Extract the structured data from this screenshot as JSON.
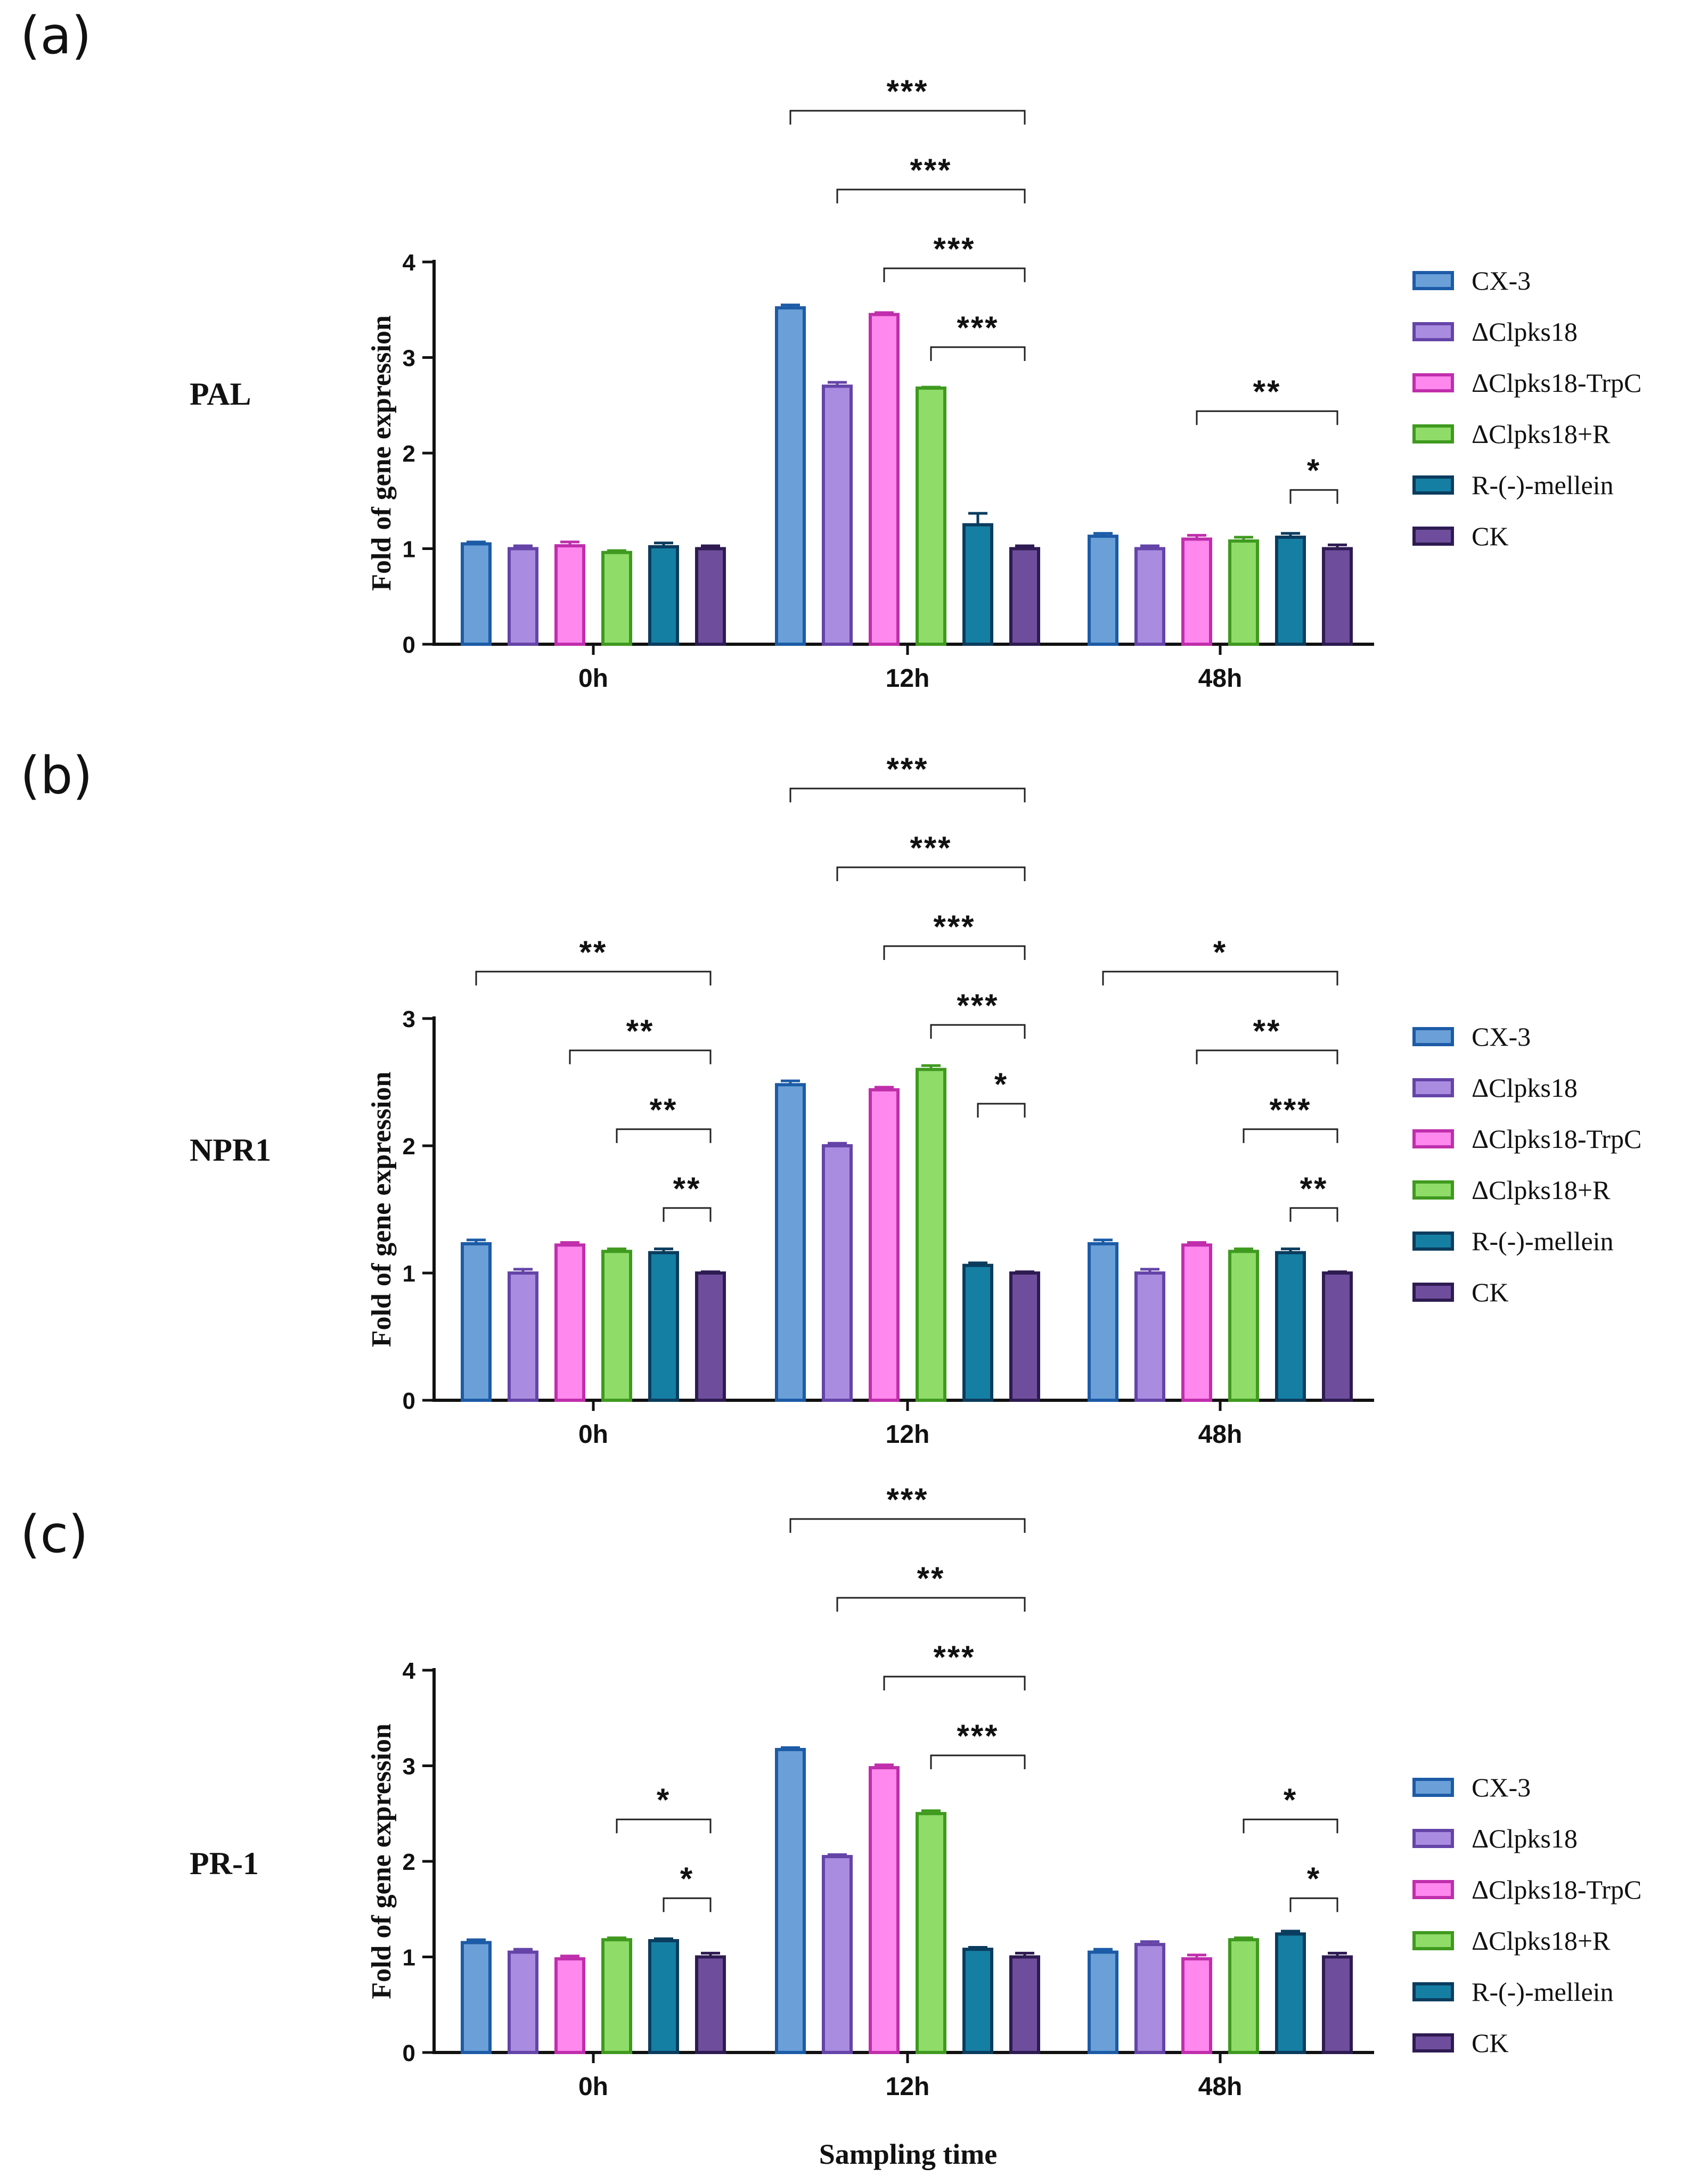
{
  "figure": {
    "x_title": "Sampling time",
    "series": [
      {
        "name": "CX-3",
        "fill": "#6a9fd8",
        "stroke": "#1c5ba6"
      },
      {
        "name": "ΔClpks18",
        "fill": "#a98be0",
        "stroke": "#6544a8"
      },
      {
        "name": "ΔClpks18-TrpC",
        "fill": "#ff88ee",
        "stroke": "#c02eac"
      },
      {
        "name": "ΔClpks18+R",
        "fill": "#8fdc69",
        "stroke": "#3f9a1f"
      },
      {
        "name": "R-(-)-mellein",
        "fill": "#157fa3",
        "stroke": "#0a3c5e"
      },
      {
        "name": "CK",
        "fill": "#6e4e9c",
        "stroke": "#2e1b52"
      }
    ]
  },
  "chart_data": [
    {
      "type": "bar",
      "panel": "(a)",
      "gene": "PAL",
      "ylabel": "Fold of gene expression",
      "categories": [
        "0h",
        "12h",
        "48h"
      ],
      "ylim": [
        0,
        4
      ],
      "yticks": [
        "0",
        "1",
        "2",
        "3",
        "4"
      ],
      "series": [
        {
          "name": "CX-3",
          "values": [
            1.05,
            3.52,
            1.13
          ],
          "errors": [
            0.02,
            0.03,
            0.03
          ]
        },
        {
          "name": "ΔClpks18",
          "values": [
            1.0,
            2.7,
            1.0
          ],
          "errors": [
            0.03,
            0.04,
            0.03
          ]
        },
        {
          "name": "ΔClpks18-TrpC",
          "values": [
            1.03,
            3.45,
            1.1
          ],
          "errors": [
            0.04,
            0.02,
            0.04
          ]
        },
        {
          "name": "ΔClpks18+R",
          "values": [
            0.96,
            2.68,
            1.08
          ],
          "errors": [
            0.02,
            0.01,
            0.04
          ]
        },
        {
          "name": "R-(-)-mellein",
          "values": [
            1.02,
            1.25,
            1.12
          ],
          "errors": [
            0.04,
            0.12,
            0.04
          ]
        },
        {
          "name": "CK",
          "values": [
            1.0,
            1.0,
            1.0
          ],
          "errors": [
            0.03,
            0.03,
            0.04
          ]
        }
      ],
      "significance": [
        {
          "category": "12h",
          "from": "CX-3",
          "to": "CK",
          "label": "***"
        },
        {
          "category": "12h",
          "from": "ΔClpks18",
          "to": "CK",
          "label": "***"
        },
        {
          "category": "12h",
          "from": "ΔClpks18-TrpC",
          "to": "CK",
          "label": "***"
        },
        {
          "category": "12h",
          "from": "ΔClpks18+R",
          "to": "CK",
          "label": "***"
        },
        {
          "category": "48h",
          "from": "ΔClpks18-TrpC",
          "to": "CK",
          "label": "**"
        },
        {
          "category": "48h",
          "from": "R-(-)-mellein",
          "to": "CK",
          "label": "*"
        }
      ]
    },
    {
      "type": "bar",
      "panel": "(b)",
      "gene": "NPR1",
      "ylabel": "Fold of gene expression",
      "categories": [
        "0h",
        "12h",
        "48h"
      ],
      "ylim": [
        0,
        3
      ],
      "yticks": [
        "0",
        "1",
        "2",
        "3"
      ],
      "series": [
        {
          "name": "CX-3",
          "values": [
            1.23,
            2.48,
            1.23
          ],
          "errors": [
            0.03,
            0.03,
            0.03
          ]
        },
        {
          "name": "ΔClpks18",
          "values": [
            1.0,
            2.0,
            1.0
          ],
          "errors": [
            0.03,
            0.02,
            0.03
          ]
        },
        {
          "name": "ΔClpks18-TrpC",
          "values": [
            1.22,
            2.44,
            1.22
          ],
          "errors": [
            0.02,
            0.02,
            0.02
          ]
        },
        {
          "name": "ΔClpks18+R",
          "values": [
            1.17,
            2.6,
            1.17
          ],
          "errors": [
            0.02,
            0.03,
            0.02
          ]
        },
        {
          "name": "R-(-)-mellein",
          "values": [
            1.16,
            1.06,
            1.16
          ],
          "errors": [
            0.03,
            0.02,
            0.03
          ]
        },
        {
          "name": "CK",
          "values": [
            1.0,
            1.0,
            1.0
          ],
          "errors": [
            0.01,
            0.01,
            0.01
          ]
        }
      ],
      "significance": [
        {
          "category": "0h",
          "from": "CX-3",
          "to": "CK",
          "label": "**"
        },
        {
          "category": "0h",
          "from": "ΔClpks18-TrpC",
          "to": "CK",
          "label": "**"
        },
        {
          "category": "0h",
          "from": "ΔClpks18+R",
          "to": "CK",
          "label": "**"
        },
        {
          "category": "0h",
          "from": "R-(-)-mellein",
          "to": "CK",
          "label": "**"
        },
        {
          "category": "12h",
          "from": "CX-3",
          "to": "CK",
          "label": "***"
        },
        {
          "category": "12h",
          "from": "ΔClpks18",
          "to": "CK",
          "label": "***"
        },
        {
          "category": "12h",
          "from": "ΔClpks18-TrpC",
          "to": "CK",
          "label": "***"
        },
        {
          "category": "12h",
          "from": "ΔClpks18+R",
          "to": "CK",
          "label": "***"
        },
        {
          "category": "12h",
          "from": "R-(-)-mellein",
          "to": "CK",
          "label": "*"
        },
        {
          "category": "48h",
          "from": "CX-3",
          "to": "CK",
          "label": "*"
        },
        {
          "category": "48h",
          "from": "ΔClpks18-TrpC",
          "to": "CK",
          "label": "**"
        },
        {
          "category": "48h",
          "from": "ΔClpks18+R",
          "to": "CK",
          "label": "***"
        },
        {
          "category": "48h",
          "from": "R-(-)-mellein",
          "to": "CK",
          "label": "**"
        }
      ]
    },
    {
      "type": "bar",
      "panel": "(c)",
      "gene": "PR-1",
      "ylabel": "Fold of gene expression",
      "categories": [
        "0h",
        "12h",
        "48h"
      ],
      "ylim": [
        0,
        4
      ],
      "yticks": [
        "0",
        "1",
        "2",
        "3",
        "4"
      ],
      "series": [
        {
          "name": "CX-3",
          "values": [
            1.15,
            3.17,
            1.05
          ],
          "errors": [
            0.03,
            0.02,
            0.03
          ]
        },
        {
          "name": "ΔClpks18",
          "values": [
            1.05,
            2.05,
            1.13
          ],
          "errors": [
            0.03,
            0.02,
            0.03
          ]
        },
        {
          "name": "ΔClpks18-TrpC",
          "values": [
            0.98,
            2.98,
            0.98
          ],
          "errors": [
            0.03,
            0.03,
            0.04
          ]
        },
        {
          "name": "ΔClpks18+R",
          "values": [
            1.18,
            2.5,
            1.18
          ],
          "errors": [
            0.02,
            0.03,
            0.02
          ]
        },
        {
          "name": "R-(-)-mellein",
          "values": [
            1.17,
            1.08,
            1.24
          ],
          "errors": [
            0.02,
            0.02,
            0.03
          ]
        },
        {
          "name": "CK",
          "values": [
            1.0,
            1.0,
            1.0
          ],
          "errors": [
            0.04,
            0.04,
            0.04
          ]
        }
      ],
      "significance": [
        {
          "category": "0h",
          "from": "ΔClpks18+R",
          "to": "CK",
          "label": "*"
        },
        {
          "category": "0h",
          "from": "R-(-)-mellein",
          "to": "CK",
          "label": "*"
        },
        {
          "category": "12h",
          "from": "CX-3",
          "to": "CK",
          "label": "***"
        },
        {
          "category": "12h",
          "from": "ΔClpks18",
          "to": "CK",
          "label": "**"
        },
        {
          "category": "12h",
          "from": "ΔClpks18-TrpC",
          "to": "CK",
          "label": "***"
        },
        {
          "category": "12h",
          "from": "ΔClpks18+R",
          "to": "CK",
          "label": "***"
        },
        {
          "category": "48h",
          "from": "ΔClpks18+R",
          "to": "CK",
          "label": "*"
        },
        {
          "category": "48h",
          "from": "R-(-)-mellein",
          "to": "CK",
          "label": "*"
        }
      ]
    }
  ]
}
